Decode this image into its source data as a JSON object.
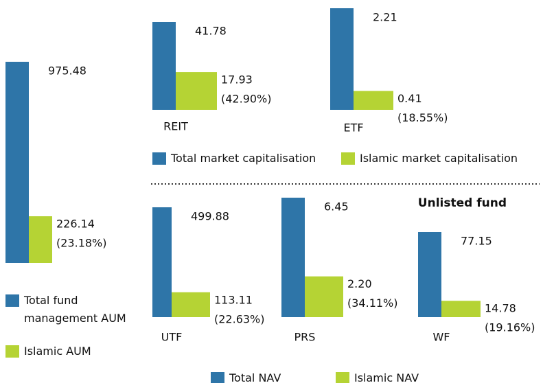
{
  "chart_data": [
    {
      "type": "bar",
      "categories": [
        null
      ],
      "series": [
        {
          "name": "Total fund management AUM",
          "color": "#2e75a8",
          "values": [
            975.48
          ]
        },
        {
          "name": "Islamic AUM",
          "color": "#b5d334",
          "values": [
            226.14
          ],
          "share_labels": [
            "(23.18%)"
          ]
        }
      ]
    },
    {
      "type": "bar",
      "categories": [
        "REIT",
        "ETF"
      ],
      "series": [
        {
          "name": "Total market capitalisation",
          "color": "#2e75a8",
          "values": [
            41.78,
            2.21
          ]
        },
        {
          "name": "Islamic market capitalisation",
          "color": "#b5d334",
          "values": [
            17.93,
            0.41
          ],
          "share_labels": [
            "(42.90%)",
            "(18.55%)"
          ]
        }
      ]
    },
    {
      "type": "bar",
      "title": "Unlisted fund",
      "categories": [
        "UTF",
        "PRS",
        "WF"
      ],
      "series": [
        {
          "name": "Total NAV",
          "color": "#2e75a8",
          "values": [
            499.88,
            6.45,
            77.15
          ]
        },
        {
          "name": "Islamic NAV",
          "color": "#b5d334",
          "values": [
            113.11,
            2.2,
            14.78
          ],
          "value_labels": [
            "113.11",
            "2.20",
            "14.78"
          ],
          "share_labels": [
            "(22.63%)",
            "(34.11%)",
            "(19.16%)"
          ]
        }
      ]
    }
  ]
}
